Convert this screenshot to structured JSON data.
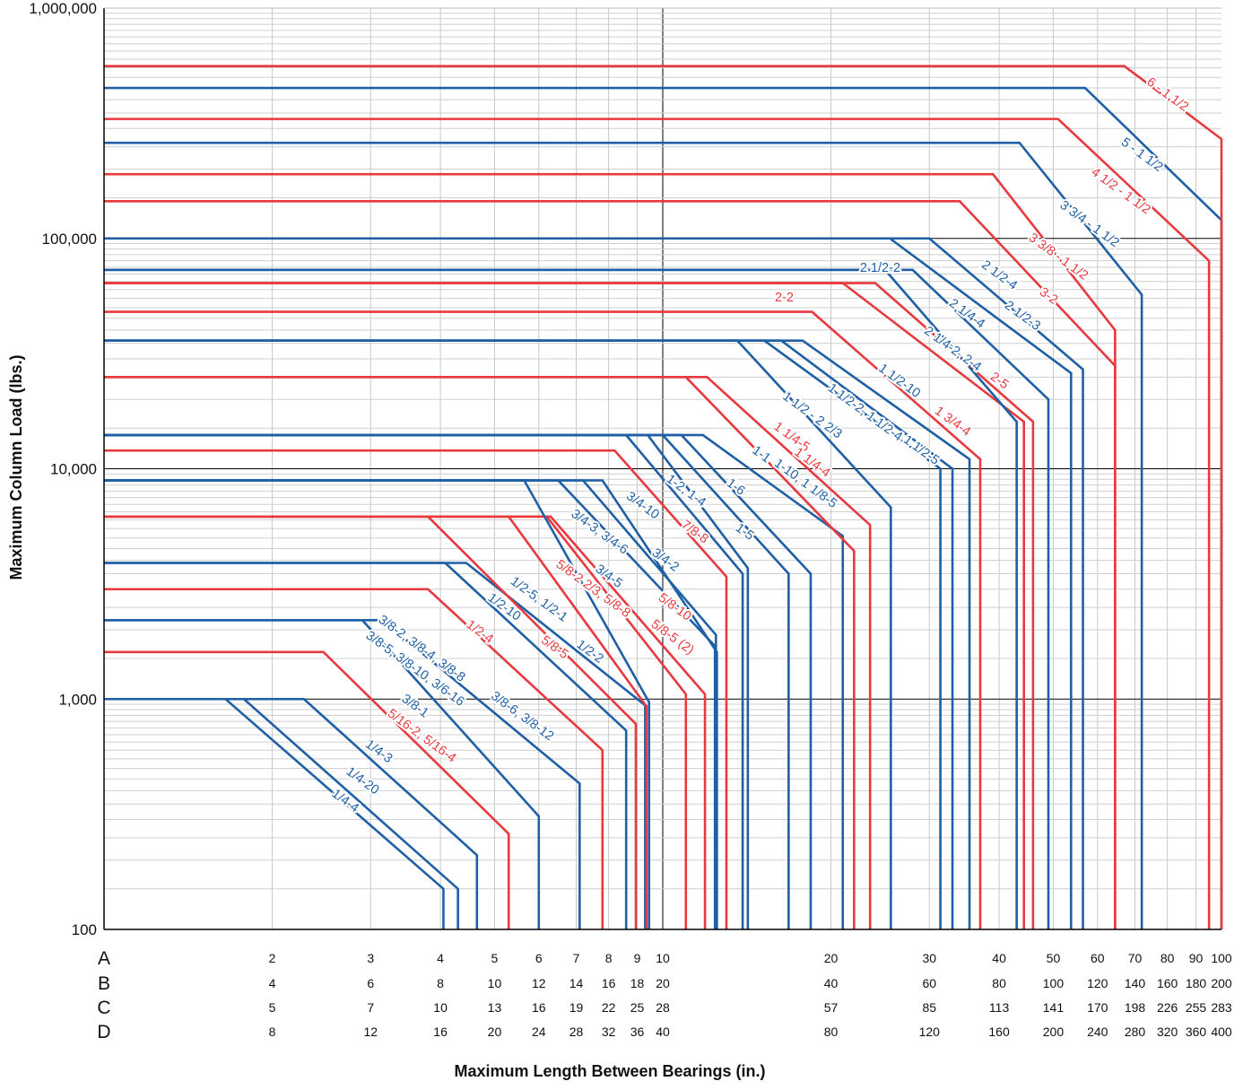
{
  "chart_data": {
    "type": "line",
    "title": "",
    "xlabel": "Maximum Length Between Bearings (in.)",
    "ylabel": "Maximum Column Load (lbs.)",
    "yscale": "log",
    "xscale": "log",
    "ylim": [
      100,
      1000000
    ],
    "xlim_scale_A": [
      1,
      100
    ],
    "grid": true,
    "y_tick_labels": [
      "1,000,000",
      "100,000",
      "10,000",
      "1,000",
      "100"
    ],
    "y_ticks": [
      1000000,
      100000,
      10000,
      1000,
      100
    ],
    "colors": {
      "red": "#e8393f",
      "blue": "#1f5fa6"
    },
    "x_scale_rows": [
      {
        "key": "A",
        "ticks": [
          2,
          3,
          4,
          5,
          6,
          7,
          8,
          9,
          10,
          20,
          30,
          40,
          50,
          60,
          70,
          80,
          90,
          100
        ],
        "labels": [
          "2",
          "3",
          "4",
          "5",
          "6",
          "7",
          "8",
          "9",
          "10",
          "20",
          "30",
          "40",
          "50",
          "60",
          "70",
          "80",
          "90",
          "100"
        ]
      },
      {
        "key": "B",
        "ticks": [
          2,
          3,
          4,
          5,
          6,
          7,
          8,
          9,
          10,
          20,
          30,
          40,
          50,
          60,
          70,
          80,
          90,
          100
        ],
        "labels": [
          "4",
          "6",
          "8",
          "10",
          "12",
          "14",
          "16",
          "18",
          "20",
          "40",
          "60",
          "80",
          "100",
          "120",
          "140",
          "160",
          "180",
          "200"
        ]
      },
      {
        "key": "C",
        "ticks": [
          2,
          3,
          4,
          5,
          6,
          7,
          8,
          9,
          10,
          20,
          30,
          40,
          50,
          60,
          70,
          80,
          90,
          100
        ],
        "labels": [
          "5",
          "7",
          "10",
          "13",
          "16",
          "19",
          "22",
          "25",
          "28",
          "57",
          "85",
          "113",
          "141",
          "170",
          "198",
          "226",
          "255",
          "283"
        ]
      },
      {
        "key": "D",
        "ticks": [
          2,
          3,
          4,
          5,
          6,
          7,
          8,
          9,
          10,
          20,
          30,
          40,
          50,
          60,
          70,
          80,
          90,
          100
        ],
        "labels": [
          "8",
          "12",
          "16",
          "20",
          "24",
          "28",
          "32",
          "36",
          "40",
          "80",
          "120",
          "160",
          "200",
          "240",
          "280",
          "320",
          "360",
          "400"
        ]
      }
    ],
    "series": [
      {
        "color": "blue",
        "load": 1000,
        "knee_x": 1.65,
        "end_x": 4.05,
        "end_y": 150
      },
      {
        "color": "blue",
        "load": 1000,
        "knee_x": 1.78,
        "end_x": 4.3,
        "end_y": 150
      },
      {
        "color": "blue",
        "load": 1000,
        "knee_x": 2.28,
        "end_x": 4.65,
        "end_y": 210
      },
      {
        "color": "red",
        "load": 1600,
        "knee_x": 2.47,
        "end_x": 5.3,
        "end_y": 260
      },
      {
        "color": "blue",
        "load": 2200,
        "knee_x": 2.9,
        "end_x": 6.0,
        "end_y": 310
      },
      {
        "color": "blue",
        "load": 2200,
        "knee_x": 3.15,
        "end_x": 7.1,
        "end_y": 430
      },
      {
        "color": "red",
        "load": 3000,
        "knee_x": 3.8,
        "end_x": 7.8,
        "end_y": 600
      },
      {
        "color": "blue",
        "load": 3900,
        "knee_x": 4.08,
        "end_x": 8.6,
        "end_y": 730
      },
      {
        "color": "blue",
        "load": 3900,
        "knee_x": 4.45,
        "end_x": 9.3,
        "end_y": 940
      },
      {
        "color": "red",
        "load": 6200,
        "knee_x": 3.8,
        "end_x": 8.95,
        "end_y": 780
      },
      {
        "color": "red",
        "load": 6200,
        "knee_x": 5.3,
        "end_x": 9.35,
        "end_y": 930
      },
      {
        "color": "red",
        "load": 6200,
        "knee_x": 6.2,
        "end_x": 11.0,
        "end_y": 1050
      },
      {
        "color": "red",
        "load": 6200,
        "knee_x": 6.3,
        "end_x": 11.9,
        "end_y": 1050
      },
      {
        "color": "blue",
        "load": 8900,
        "knee_x": 5.65,
        "end_x": 9.45,
        "end_y": 970
      },
      {
        "color": "blue",
        "load": 8900,
        "knee_x": 6.5,
        "end_x": 12.4,
        "end_y": 1700
      },
      {
        "color": "blue",
        "load": 8900,
        "knee_x": 7.2,
        "end_x": 12.45,
        "end_y": 1900
      },
      {
        "color": "blue",
        "load": 8900,
        "knee_x": 7.8,
        "end_x": 12.5,
        "end_y": 1600
      },
      {
        "color": "red",
        "load": 12000,
        "knee_x": 8.2,
        "end_x": 13.0,
        "end_y": 3400
      },
      {
        "color": "blue",
        "load": 14000,
        "knee_x": 8.6,
        "end_x": 13.9,
        "end_y": 3500
      },
      {
        "color": "blue",
        "load": 14000,
        "knee_x": 9.4,
        "end_x": 14.2,
        "end_y": 3700
      },
      {
        "color": "blue",
        "load": 14000,
        "knee_x": 10.0,
        "end_x": 16.8,
        "end_y": 3500
      },
      {
        "color": "blue",
        "load": 14000,
        "knee_x": 10.8,
        "end_x": 18.4,
        "end_y": 3500
      },
      {
        "color": "blue",
        "load": 14000,
        "knee_x": 11.8,
        "end_x": 21.0,
        "end_y": 5100
      },
      {
        "color": "red",
        "load": 25000,
        "knee_x": 11.0,
        "end_x": 22.0,
        "end_y": 4400
      },
      {
        "color": "red",
        "load": 25000,
        "knee_x": 12.0,
        "end_x": 23.5,
        "end_y": 5700
      },
      {
        "color": "blue",
        "load": 36000,
        "knee_x": 13.6,
        "end_x": 25.6,
        "end_y": 6800
      },
      {
        "color": "blue",
        "load": 36000,
        "knee_x": 15.2,
        "end_x": 31.4,
        "end_y": 10000
      },
      {
        "color": "blue",
        "load": 36000,
        "knee_x": 16.3,
        "end_x": 33.0,
        "end_y": 10000
      },
      {
        "color": "blue",
        "load": 36000,
        "knee_x": 17.8,
        "end_x": 35.4,
        "end_y": 11000
      },
      {
        "color": "red",
        "load": 48000,
        "knee_x": 18.5,
        "end_x": 37.0,
        "end_y": 11000
      },
      {
        "color": "red",
        "load": 64000,
        "knee_x": 21.0,
        "end_x": 44.3,
        "end_y": 16000
      },
      {
        "color": "red",
        "load": 64000,
        "knee_x": 24.0,
        "end_x": 46.0,
        "end_y": 16000
      },
      {
        "color": "blue",
        "load": 73000,
        "knee_x": 25.0,
        "end_x": 43.0,
        "end_y": 16000
      },
      {
        "color": "blue",
        "load": 73000,
        "knee_x": 28.0,
        "end_x": 49.0,
        "end_y": 20000
      },
      {
        "color": "blue",
        "load": 100000,
        "knee_x": 25.5,
        "end_x": 53.8,
        "end_y": 26000
      },
      {
        "color": "blue",
        "load": 100000,
        "knee_x": 30.0,
        "end_x": 56.5,
        "end_y": 27000
      },
      {
        "color": "red",
        "load": 145000,
        "knee_x": 34.0,
        "end_x": 64.5,
        "end_y": 28000
      },
      {
        "color": "red",
        "load": 190000,
        "knee_x": 39.0,
        "end_x": 64.5,
        "end_y": 40000
      },
      {
        "color": "blue",
        "load": 260000,
        "knee_x": 43.5,
        "end_x": 72.0,
        "end_y": 57000
      },
      {
        "color": "red",
        "load": 330000,
        "knee_x": 51.0,
        "end_x": 95.0,
        "end_y": 80000
      },
      {
        "color": "blue",
        "load": 450000,
        "knee_x": 57.0,
        "end_x": 100.0,
        "end_y": 120000
      },
      {
        "color": "red",
        "load": 560000,
        "knee_x": 67.0,
        "end_x": 100.0,
        "end_y": 270000
      }
    ],
    "annotations": [
      {
        "text": "6 - 1 1/2",
        "color": "red",
        "x": 80,
        "y": 420000,
        "angle": 36
      },
      {
        "text": "5 - 1 1/2",
        "color": "blue",
        "x": 72,
        "y": 230000,
        "angle": 36
      },
      {
        "text": "4 1/2 - 1 1/2",
        "color": "red",
        "x": 66,
        "y": 160000,
        "angle": 36
      },
      {
        "text": "3 3/4 - 1 1/2",
        "color": "blue",
        "x": 58,
        "y": 115000,
        "angle": 36
      },
      {
        "text": "3 3/8 - 1 1/2",
        "color": "red",
        "x": 51,
        "y": 83000,
        "angle": 36
      },
      {
        "text": "3-2",
        "color": "red",
        "x": 49,
        "y": 56000,
        "angle": 36
      },
      {
        "text": "2 1/2-4",
        "color": "blue",
        "x": 40,
        "y": 69000,
        "angle": 36
      },
      {
        "text": "2 1/2-3",
        "color": "blue",
        "x": 44,
        "y": 46000,
        "angle": 36
      },
      {
        "text": "2 1/4-4",
        "color": "blue",
        "x": 35,
        "y": 47000,
        "angle": 36
      },
      {
        "text": "2 1/2-2",
        "color": "blue",
        "x": 24.5,
        "y": 74000,
        "angle": 0
      },
      {
        "text": "2-2",
        "color": "red",
        "x": 16.5,
        "y": 55000,
        "angle": 0
      },
      {
        "text": "2 1/4-2, 2-4",
        "color": "blue",
        "x": 33,
        "y": 33000,
        "angle": 36
      },
      {
        "text": "2-5",
        "color": "red",
        "x": 40,
        "y": 24000,
        "angle": 36
      },
      {
        "text": "1 1/2-10",
        "color": "blue",
        "x": 26.5,
        "y": 24000,
        "angle": 36
      },
      {
        "text": "1 3/4-4",
        "color": "red",
        "x": 33,
        "y": 16000,
        "angle": 36
      },
      {
        "text": "1 1/2-2, 1 1/2-4",
        "color": "blue",
        "x": 23,
        "y": 17500,
        "angle": 36
      },
      {
        "text": "1 1/2-5",
        "color": "blue",
        "x": 29,
        "y": 12000,
        "angle": 36
      },
      {
        "text": "1 1/2 - 2 2/3",
        "color": "blue",
        "x": 18.5,
        "y": 17000,
        "angle": 36
      },
      {
        "text": "1 1/4-5",
        "color": "red",
        "x": 17,
        "y": 13700,
        "angle": 36
      },
      {
        "text": "1-1",
        "color": "blue",
        "x": 15,
        "y": 11500,
        "angle": 36
      },
      {
        "text": "1 1/4-4",
        "color": "red",
        "x": 18.5,
        "y": 10600,
        "angle": 36
      },
      {
        "text": "1-10, 1 1/8-5",
        "color": "blue",
        "x": 18,
        "y": 8600,
        "angle": 36
      },
      {
        "text": "1-6",
        "color": "blue",
        "x": 13.5,
        "y": 8300,
        "angle": 36
      },
      {
        "text": "1-2, 1-4",
        "color": "blue",
        "x": 11,
        "y": 8000,
        "angle": 36
      },
      {
        "text": "3/4-10",
        "color": "blue",
        "x": 9.2,
        "y": 6900,
        "angle": 36
      },
      {
        "text": "7/8-8",
        "color": "red",
        "x": 11.4,
        "y": 5300,
        "angle": 36
      },
      {
        "text": "1-5",
        "color": "blue",
        "x": 14,
        "y": 5300,
        "angle": 36
      },
      {
        "text": "3/4-3, 3/4-6",
        "color": "blue",
        "x": 7.7,
        "y": 5300,
        "angle": 36
      },
      {
        "text": "3/4-2",
        "color": "blue",
        "x": 10.1,
        "y": 4000,
        "angle": 36
      },
      {
        "text": "5/8-2 2/3, 5/8-8",
        "color": "red",
        "x": 7.5,
        "y": 3000,
        "angle": 36
      },
      {
        "text": "3/4-5",
        "color": "blue",
        "x": 8.0,
        "y": 3400,
        "angle": 36
      },
      {
        "text": "1/2-5, 1/2-1",
        "color": "blue",
        "x": 6.0,
        "y": 2700,
        "angle": 36
      },
      {
        "text": "5/8-10",
        "color": "red",
        "x": 10.5,
        "y": 2500,
        "angle": 36
      },
      {
        "text": "5/8-5 (2)",
        "color": "red",
        "x": 10.4,
        "y": 1850,
        "angle": 36
      },
      {
        "text": "1/2-10",
        "color": "blue",
        "x": 5.2,
        "y": 2500,
        "angle": 36
      },
      {
        "text": "1/2-4",
        "color": "red",
        "x": 4.7,
        "y": 1950,
        "angle": 36
      },
      {
        "text": "5/8-5",
        "color": "red",
        "x": 6.4,
        "y": 1670,
        "angle": 36
      },
      {
        "text": "1/2-2",
        "color": "blue",
        "x": 7.4,
        "y": 1600,
        "angle": 36
      },
      {
        "text": "3/8-2, 3/8-4, 3/8-8",
        "color": "blue",
        "x": 3.7,
        "y": 1650,
        "angle": 36
      },
      {
        "text": "3/8-5, 3/8-10, 3/6-16",
        "color": "blue",
        "x": 3.6,
        "y": 1350,
        "angle": 36
      },
      {
        "text": "3/8-1",
        "color": "blue",
        "x": 3.6,
        "y": 930,
        "angle": 36
      },
      {
        "text": "3/8-6, 3/8-12",
        "color": "blue",
        "x": 5.6,
        "y": 840,
        "angle": 36
      },
      {
        "text": "5/16-2, 5/16-4",
        "color": "red",
        "x": 3.7,
        "y": 690,
        "angle": 36
      },
      {
        "text": "1/4-3",
        "color": "blue",
        "x": 3.1,
        "y": 590,
        "angle": 36
      },
      {
        "text": "1/4-20",
        "color": "blue",
        "x": 2.9,
        "y": 440,
        "angle": 36
      },
      {
        "text": "1/4-4",
        "color": "blue",
        "x": 2.7,
        "y": 360,
        "angle": 36
      }
    ]
  }
}
